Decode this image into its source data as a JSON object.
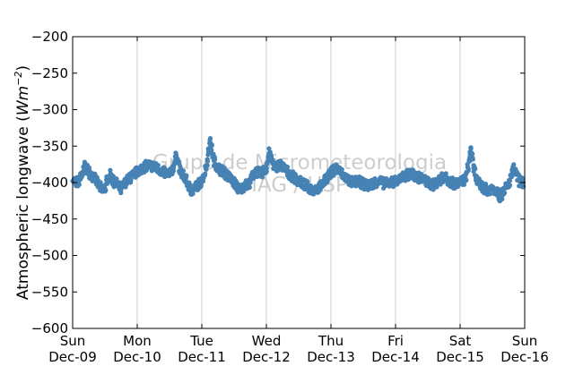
{
  "chart_data": {
    "type": "scatter",
    "ylabel": "Atmospheric longwave",
    "ylabel_unit_base": "Wm",
    "ylabel_unit_exp": "−2",
    "ylim": [
      -600,
      -200
    ],
    "yticks": [
      -200,
      -250,
      -300,
      -350,
      -400,
      -450,
      -500,
      -550,
      -600
    ],
    "ytick_labels": [
      "−200",
      "−250",
      "−300",
      "−350",
      "−400",
      "−450",
      "−500",
      "−550",
      "−600"
    ],
    "xlim": [
      "2012-12-09",
      "2012-12-16"
    ],
    "xticks": [
      {
        "day": "Sun",
        "date": "Dec-09"
      },
      {
        "day": "Mon",
        "date": "Dec-10"
      },
      {
        "day": "Tue",
        "date": "Dec-11"
      },
      {
        "day": "Wed",
        "date": "Dec-12"
      },
      {
        "day": "Thu",
        "date": "Dec-13"
      },
      {
        "day": "Fri",
        "date": "Dec-14"
      },
      {
        "day": "Sat",
        "date": "Dec-15"
      },
      {
        "day": "Sun",
        "date": "Dec-16"
      }
    ],
    "grid": "vertical",
    "marker_color": "#4682b4",
    "watermark": [
      "Grupo de Micrometeorologia",
      "IAG / USP"
    ],
    "series": [
      {
        "points": [
          [
            "2012-12-09 00:00",
            -398
          ],
          [
            "2012-12-09 02:00",
            -400
          ],
          [
            "2012-12-09 03:30",
            -390
          ],
          [
            "2012-12-09 04:30",
            -378
          ],
          [
            "2012-12-09 06:00",
            -385
          ],
          [
            "2012-12-09 07:00",
            -392
          ],
          [
            "2012-12-09 08:00",
            -388
          ],
          [
            "2012-12-09 09:00",
            -400
          ],
          [
            "2012-12-09 10:00",
            -405
          ],
          [
            "2012-12-09 11:00",
            -412
          ],
          [
            "2012-12-09 12:00",
            -408
          ],
          [
            "2012-12-09 13:00",
            -395
          ],
          [
            "2012-12-09 14:00",
            -390
          ],
          [
            "2012-12-09 15:00",
            -398
          ],
          [
            "2012-12-09 16:00",
            -400
          ],
          [
            "2012-12-09 17:00",
            -405
          ],
          [
            "2012-12-09 18:00",
            -410
          ],
          [
            "2012-12-09 19:00",
            -403
          ],
          [
            "2012-12-09 20:00",
            -398
          ],
          [
            "2012-12-09 22:00",
            -392
          ],
          [
            "2012-12-10 00:00",
            -385
          ],
          [
            "2012-12-10 02:00",
            -380
          ],
          [
            "2012-12-10 04:00",
            -376
          ],
          [
            "2012-12-10 06:00",
            -378
          ],
          [
            "2012-12-10 08:00",
            -382
          ],
          [
            "2012-12-10 10:00",
            -386
          ],
          [
            "2012-12-10 12:00",
            -390
          ],
          [
            "2012-12-10 13:30",
            -378
          ],
          [
            "2012-12-10 14:30",
            -362
          ],
          [
            "2012-12-10 16:00",
            -385
          ],
          [
            "2012-12-10 18:00",
            -395
          ],
          [
            "2012-12-10 19:30",
            -408
          ],
          [
            "2012-12-10 20:30",
            -412
          ],
          [
            "2012-12-10 22:00",
            -405
          ],
          [
            "2012-12-11 00:00",
            -398
          ],
          [
            "2012-12-11 01:30",
            -380
          ],
          [
            "2012-12-11 02:30",
            -360
          ],
          [
            "2012-12-11 03:00",
            -342
          ],
          [
            "2012-12-11 03:30",
            -350
          ],
          [
            "2012-12-11 04:30",
            -370
          ],
          [
            "2012-12-11 06:00",
            -380
          ],
          [
            "2012-12-11 08:00",
            -385
          ],
          [
            "2012-12-11 10:00",
            -392
          ],
          [
            "2012-12-11 12:00",
            -400
          ],
          [
            "2012-12-11 13:00",
            -405
          ],
          [
            "2012-12-11 14:00",
            -410
          ],
          [
            "2012-12-11 15:00",
            -408
          ],
          [
            "2012-12-11 16:00",
            -402
          ],
          [
            "2012-12-11 17:00",
            -405
          ],
          [
            "2012-12-11 18:00",
            -398
          ],
          [
            "2012-12-11 19:00",
            -390
          ],
          [
            "2012-12-11 20:00",
            -385
          ],
          [
            "2012-12-11 22:00",
            -388
          ],
          [
            "2012-12-12 00:00",
            -380
          ],
          [
            "2012-12-12 01:00",
            -360
          ],
          [
            "2012-12-12 02:00",
            -370
          ],
          [
            "2012-12-12 03:00",
            -380
          ],
          [
            "2012-12-12 05:00",
            -375
          ],
          [
            "2012-12-12 07:00",
            -382
          ],
          [
            "2012-12-12 09:00",
            -390
          ],
          [
            "2012-12-12 11:00",
            -395
          ],
          [
            "2012-12-12 13:00",
            -400
          ],
          [
            "2012-12-12 15:00",
            -405
          ],
          [
            "2012-12-12 17:00",
            -410
          ],
          [
            "2012-12-12 19:00",
            -408
          ],
          [
            "2012-12-12 21:00",
            -402
          ],
          [
            "2012-12-12 23:00",
            -390
          ],
          [
            "2012-12-13 00:30",
            -385
          ],
          [
            "2012-12-13 02:00",
            -380
          ],
          [
            "2012-12-13 04:00",
            -388
          ],
          [
            "2012-12-13 06:00",
            -395
          ],
          [
            "2012-12-13 08:00",
            -400
          ],
          [
            "2012-12-13 10:00",
            -398
          ],
          [
            "2012-12-13 12:00",
            -402
          ],
          [
            "2012-12-13 14:00",
            -405
          ],
          [
            "2012-12-13 16:00",
            -400
          ],
          [
            "2012-12-13 18:00",
            -398
          ],
          [
            "2012-12-13 20:00",
            -402
          ],
          [
            "2012-12-13 22:00",
            -400
          ],
          [
            "2012-12-14 00:00",
            -398
          ],
          [
            "2012-12-14 02:00",
            -395
          ],
          [
            "2012-12-14 04:00",
            -390
          ],
          [
            "2012-12-14 06:00",
            -388
          ],
          [
            "2012-12-14 08:00",
            -392
          ],
          [
            "2012-12-14 10:00",
            -395
          ],
          [
            "2012-12-14 12:00",
            -400
          ],
          [
            "2012-12-14 14:00",
            -403
          ],
          [
            "2012-12-14 16:00",
            -398
          ],
          [
            "2012-12-14 18:00",
            -392
          ],
          [
            "2012-12-14 20:00",
            -398
          ],
          [
            "2012-12-14 22:00",
            -402
          ],
          [
            "2012-12-15 00:00",
            -400
          ],
          [
            "2012-12-15 02:00",
            -395
          ],
          [
            "2012-12-15 03:30",
            -368
          ],
          [
            "2012-12-15 04:00",
            -352
          ],
          [
            "2012-12-15 05:00",
            -380
          ],
          [
            "2012-12-15 06:30",
            -400
          ],
          [
            "2012-12-15 08:00",
            -405
          ],
          [
            "2012-12-15 10:00",
            -410
          ],
          [
            "2012-12-15 12:00",
            -408
          ],
          [
            "2012-12-15 14:00",
            -412
          ],
          [
            "2012-12-15 15:00",
            -422
          ],
          [
            "2012-12-15 16:00",
            -410
          ],
          [
            "2012-12-15 18:00",
            -405
          ],
          [
            "2012-12-15 19:00",
            -390
          ],
          [
            "2012-12-15 20:00",
            -382
          ],
          [
            "2012-12-15 22:00",
            -398
          ],
          [
            "2012-12-15 23:30",
            -400
          ]
        ]
      }
    ]
  }
}
